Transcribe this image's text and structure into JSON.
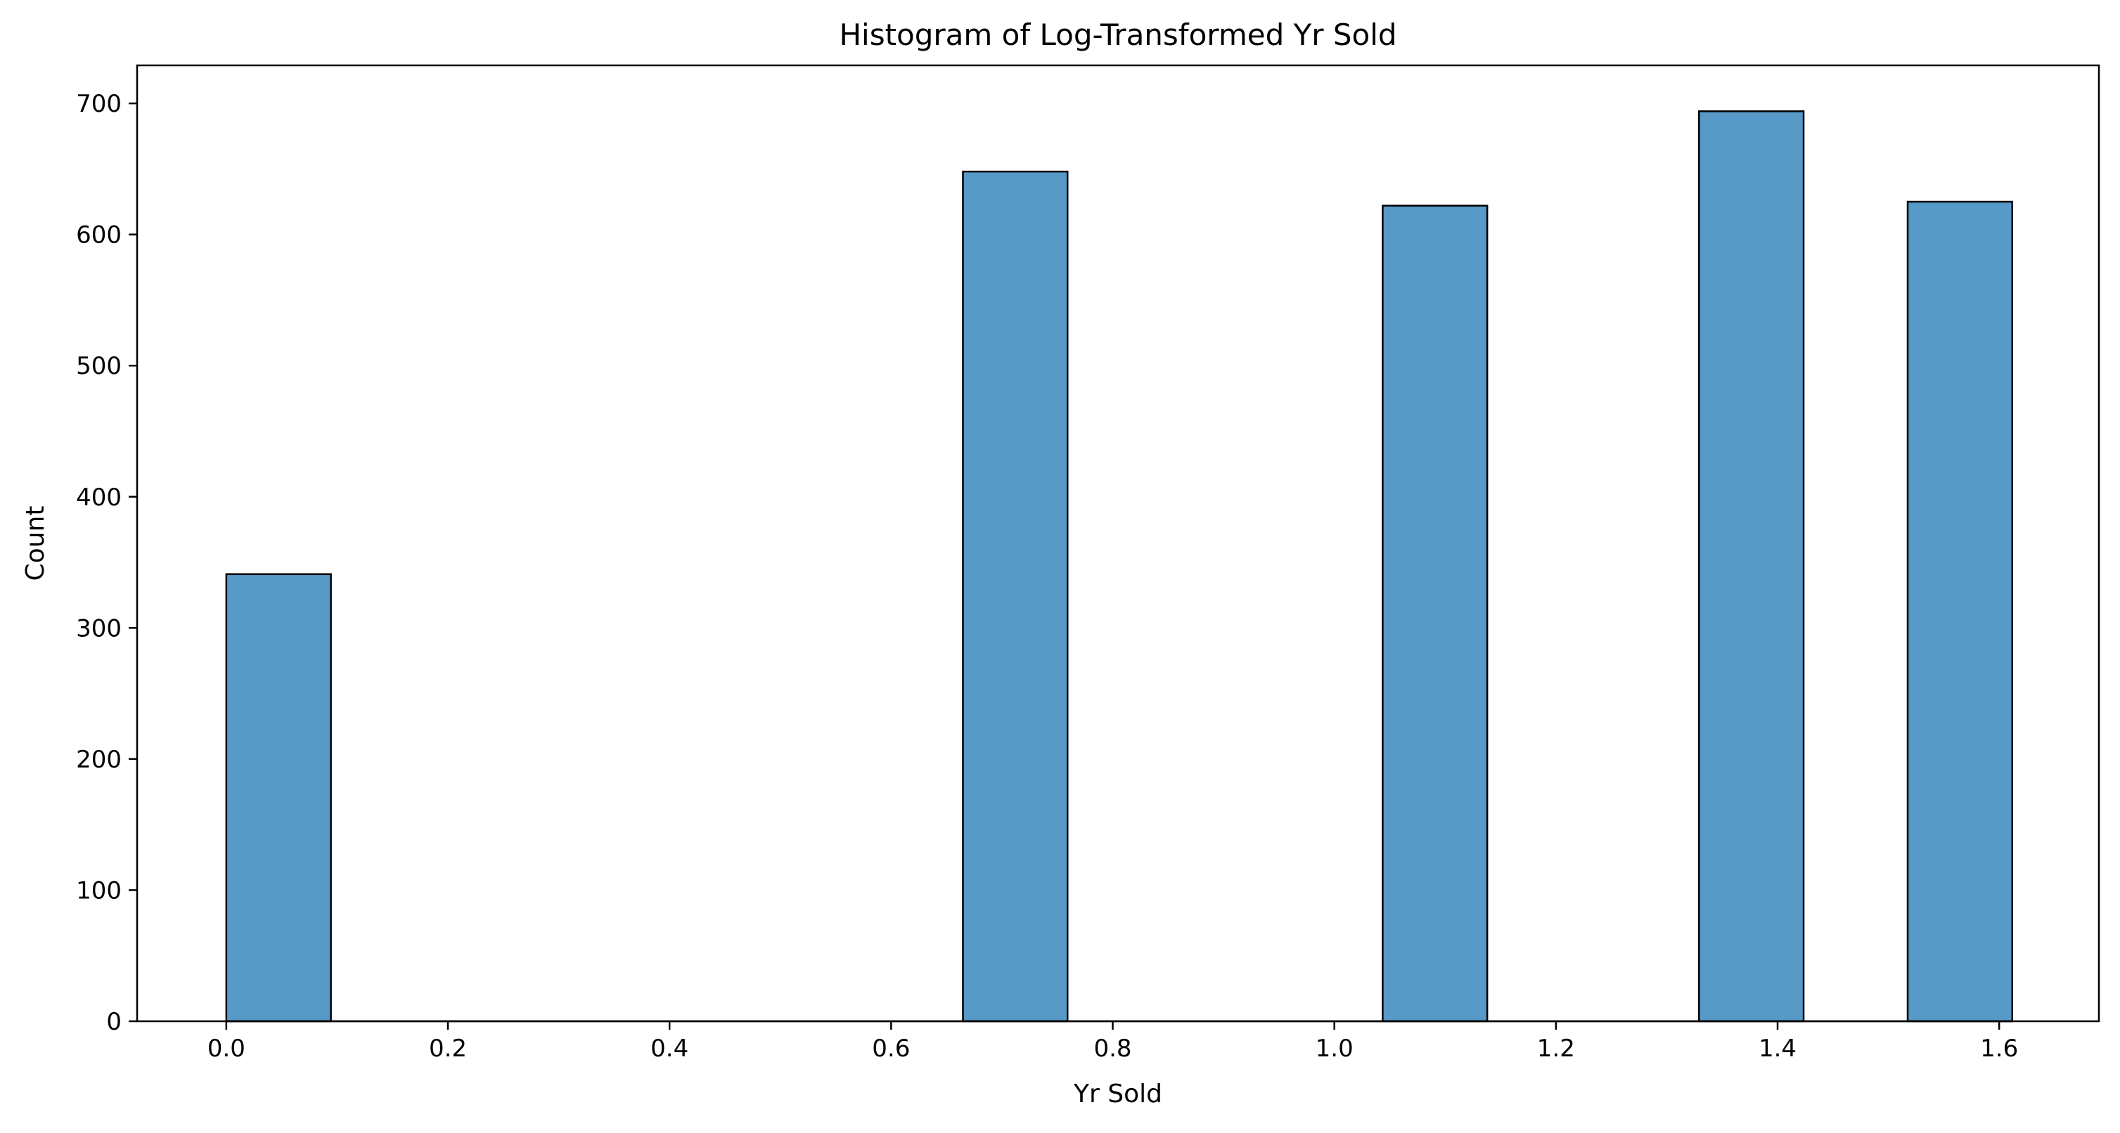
{
  "chart_data": {
    "type": "bar",
    "title": "Histogram of Log-Transformed Yr Sold",
    "xlabel": "Yr Sold",
    "ylabel": "Count",
    "xlim": [
      -0.0805,
      1.69
    ],
    "ylim": [
      0,
      729
    ],
    "xticks": [
      0.0,
      0.2,
      0.4,
      0.6,
      0.8,
      1.0,
      1.2,
      1.4,
      1.6
    ],
    "xtick_labels": [
      "0.0",
      "0.2",
      "0.4",
      "0.6",
      "0.8",
      "1.0",
      "1.2",
      "1.4",
      "1.6"
    ],
    "yticks": [
      0,
      100,
      200,
      300,
      400,
      500,
      600,
      700
    ],
    "ytick_labels": [
      "0",
      "100",
      "200",
      "300",
      "400",
      "500",
      "600",
      "700"
    ],
    "bar_color": "#5799c7",
    "edge_color": "#000000",
    "bins": [
      {
        "x0": 0.0,
        "x1": 0.0944,
        "count": 341
      },
      {
        "x0": 0.6648,
        "x1": 0.7592,
        "count": 648
      },
      {
        "x0": 1.0436,
        "x1": 1.138,
        "count": 622
      },
      {
        "x0": 1.3291,
        "x1": 1.4235,
        "count": 694
      },
      {
        "x0": 1.5174,
        "x1": 1.6118,
        "count": 625
      }
    ],
    "grid": false,
    "legend": null
  }
}
